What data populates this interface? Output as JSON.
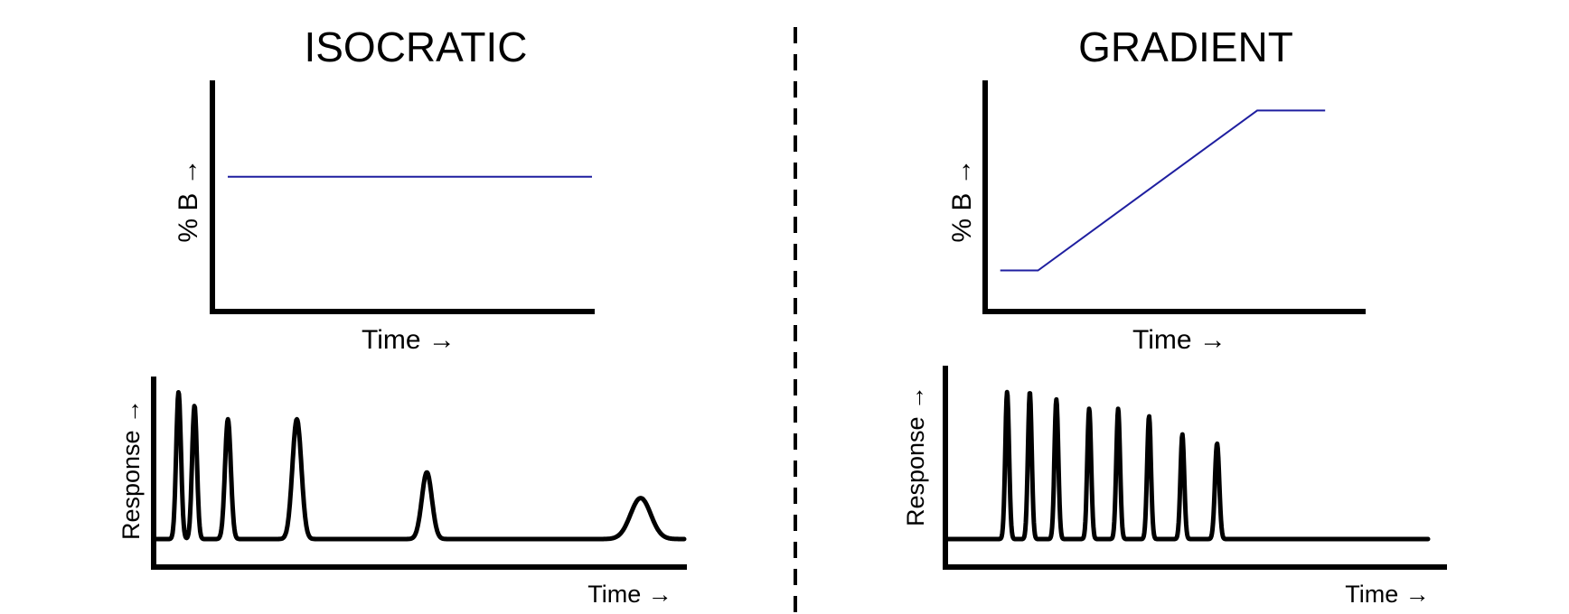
{
  "left_panel": {
    "title": "ISOCRATIC",
    "profile": {
      "ylabel": "% B →",
      "xlabel": "Time →",
      "line_color": "#1f1fa0",
      "percent_b": [
        [
          0,
          0.59
        ],
        [
          1,
          0.59
        ]
      ]
    },
    "chromatogram": {
      "ylabel": "Response →",
      "xlabel": "Time →",
      "line_color": "#000000",
      "peaks": [
        {
          "t": 0.047,
          "h": 0.97,
          "w": 0.0045
        },
        {
          "t": 0.077,
          "h": 0.88,
          "w": 0.0045
        },
        {
          "t": 0.14,
          "h": 0.79,
          "w": 0.0055
        },
        {
          "t": 0.27,
          "h": 0.79,
          "w": 0.0085
        },
        {
          "t": 0.515,
          "h": 0.44,
          "w": 0.0095
        },
        {
          "t": 0.918,
          "h": 0.27,
          "w": 0.019
        }
      ]
    }
  },
  "right_panel": {
    "title": "GRADIENT",
    "profile": {
      "ylabel": "% B →",
      "xlabel": "Time →",
      "line_color": "#1f1fa0",
      "percent_b": [
        [
          0.04,
          0.18
        ],
        [
          0.14,
          0.18
        ],
        [
          0.72,
          0.88
        ],
        [
          0.9,
          0.88
        ]
      ]
    },
    "chromatogram": {
      "ylabel": "Response →",
      "xlabel": "Time →",
      "line_color": "#000000",
      "peaks": [
        {
          "t": 0.128,
          "h": 0.97,
          "w": 0.004
        },
        {
          "t": 0.175,
          "h": 0.97,
          "w": 0.004
        },
        {
          "t": 0.23,
          "h": 0.92,
          "w": 0.004
        },
        {
          "t": 0.298,
          "h": 0.86,
          "w": 0.004
        },
        {
          "t": 0.358,
          "h": 0.86,
          "w": 0.004
        },
        {
          "t": 0.422,
          "h": 0.81,
          "w": 0.004
        },
        {
          "t": 0.491,
          "h": 0.69,
          "w": 0.004
        },
        {
          "t": 0.563,
          "h": 0.63,
          "w": 0.0045
        }
      ]
    }
  },
  "divider": {
    "style": "dashed"
  }
}
